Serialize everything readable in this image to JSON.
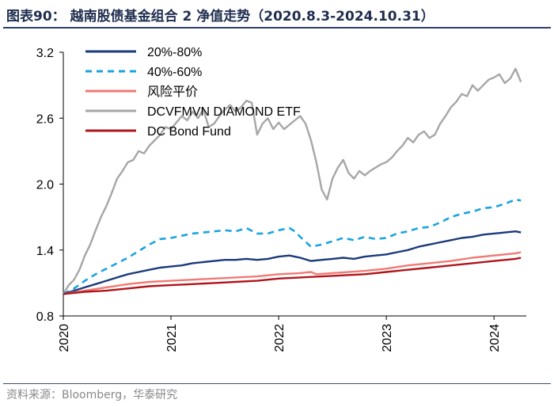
{
  "header": {
    "title": "图表90： 越南股债基金组合 2 净值走势（2020.8.3-2024.10.31）"
  },
  "footer": {
    "source": "资料来源：Bloomberg，华泰研究"
  },
  "chart_data": {
    "type": "line",
    "title": "越南股债基金组合 2 净值走势（2020.8.3-2024.10.31）",
    "xlabel": "",
    "ylabel": "",
    "x_ticks": [
      "2020",
      "2021",
      "2022",
      "2023",
      "2024"
    ],
    "x_range": [
      2020.0,
      2024.3
    ],
    "ylim": [
      0.8,
      3.2
    ],
    "y_ticks": [
      "0.8",
      "1.4",
      "2.0",
      "2.6",
      "3.2"
    ],
    "y_tick_values": [
      0.8,
      1.4,
      2.0,
      2.6,
      3.2
    ],
    "grid": false,
    "legend_position": "top-left",
    "series": [
      {
        "name": "20%-80%",
        "color": "#1b3a7a",
        "style": "solid",
        "x": [
          2020.0,
          2020.1,
          2020.2,
          2020.3,
          2020.4,
          2020.5,
          2020.6,
          2020.7,
          2020.8,
          2020.9,
          2021.0,
          2021.1,
          2021.2,
          2021.3,
          2021.4,
          2021.5,
          2021.6,
          2021.7,
          2021.8,
          2021.9,
          2022.0,
          2022.1,
          2022.15,
          2022.2,
          2022.3,
          2022.4,
          2022.5,
          2022.6,
          2022.7,
          2022.8,
          2022.9,
          2023.0,
          2023.1,
          2023.2,
          2023.3,
          2023.4,
          2023.5,
          2023.6,
          2023.7,
          2023.8,
          2023.9,
          2024.0,
          2024.1,
          2024.2,
          2024.25
        ],
        "values": [
          1.0,
          1.03,
          1.06,
          1.09,
          1.12,
          1.15,
          1.18,
          1.2,
          1.22,
          1.24,
          1.25,
          1.26,
          1.28,
          1.29,
          1.3,
          1.31,
          1.31,
          1.32,
          1.31,
          1.32,
          1.34,
          1.35,
          1.34,
          1.33,
          1.3,
          1.31,
          1.32,
          1.33,
          1.32,
          1.34,
          1.35,
          1.36,
          1.38,
          1.4,
          1.43,
          1.45,
          1.47,
          1.49,
          1.51,
          1.52,
          1.54,
          1.55,
          1.56,
          1.57,
          1.56
        ]
      },
      {
        "name": "40%-60%",
        "color": "#1aa3e0",
        "style": "dashed",
        "x": [
          2020.0,
          2020.1,
          2020.2,
          2020.3,
          2020.4,
          2020.5,
          2020.6,
          2020.7,
          2020.8,
          2020.9,
          2021.0,
          2021.1,
          2021.2,
          2021.3,
          2021.4,
          2021.5,
          2021.6,
          2021.7,
          2021.8,
          2021.9,
          2022.0,
          2022.1,
          2022.15,
          2022.2,
          2022.3,
          2022.4,
          2022.5,
          2022.6,
          2022.7,
          2022.8,
          2022.9,
          2023.0,
          2023.1,
          2023.2,
          2023.3,
          2023.4,
          2023.5,
          2023.6,
          2023.7,
          2023.8,
          2023.9,
          2024.0,
          2024.1,
          2024.2,
          2024.25
        ],
        "values": [
          1.0,
          1.05,
          1.12,
          1.18,
          1.23,
          1.28,
          1.33,
          1.39,
          1.45,
          1.5,
          1.51,
          1.53,
          1.55,
          1.56,
          1.57,
          1.58,
          1.57,
          1.6,
          1.55,
          1.55,
          1.58,
          1.6,
          1.57,
          1.52,
          1.43,
          1.45,
          1.48,
          1.51,
          1.49,
          1.52,
          1.5,
          1.51,
          1.55,
          1.57,
          1.6,
          1.61,
          1.65,
          1.7,
          1.73,
          1.75,
          1.78,
          1.79,
          1.82,
          1.86,
          1.85
        ]
      },
      {
        "name": "风险平价",
        "color": "#f07a74",
        "style": "solid",
        "x": [
          2020.0,
          2020.2,
          2020.4,
          2020.6,
          2020.8,
          2021.0,
          2021.2,
          2021.4,
          2021.6,
          2021.8,
          2022.0,
          2022.2,
          2022.3,
          2022.35,
          2022.5,
          2022.8,
          2023.0,
          2023.2,
          2023.4,
          2023.6,
          2023.8,
          2024.0,
          2024.2,
          2024.25
        ],
        "values": [
          1.0,
          1.03,
          1.06,
          1.09,
          1.11,
          1.12,
          1.13,
          1.14,
          1.15,
          1.16,
          1.18,
          1.19,
          1.2,
          1.18,
          1.19,
          1.21,
          1.23,
          1.26,
          1.28,
          1.3,
          1.33,
          1.35,
          1.37,
          1.38
        ]
      },
      {
        "name": "DCVFMVN DIAMOND ETF",
        "color": "#a6a6a6",
        "style": "solid",
        "x": [
          2020.0,
          2020.05,
          2020.1,
          2020.15,
          2020.2,
          2020.25,
          2020.3,
          2020.35,
          2020.4,
          2020.45,
          2020.5,
          2020.55,
          2020.6,
          2020.65,
          2020.7,
          2020.75,
          2020.8,
          2020.85,
          2020.9,
          2020.95,
          2021.0,
          2021.05,
          2021.1,
          2021.15,
          2021.2,
          2021.25,
          2021.3,
          2021.35,
          2021.4,
          2021.45,
          2021.5,
          2021.55,
          2021.6,
          2021.65,
          2021.7,
          2021.75,
          2021.8,
          2021.85,
          2021.9,
          2021.95,
          2022.0,
          2022.05,
          2022.1,
          2022.15,
          2022.2,
          2022.25,
          2022.3,
          2022.35,
          2022.4,
          2022.45,
          2022.5,
          2022.55,
          2022.6,
          2022.65,
          2022.7,
          2022.75,
          2022.8,
          2022.85,
          2022.9,
          2022.95,
          2023.0,
          2023.05,
          2023.1,
          2023.15,
          2023.2,
          2023.25,
          2023.3,
          2023.35,
          2023.4,
          2023.45,
          2023.5,
          2023.55,
          2023.6,
          2023.65,
          2023.7,
          2023.75,
          2023.8,
          2023.85,
          2023.9,
          2023.95,
          2024.0,
          2024.05,
          2024.1,
          2024.15,
          2024.2,
          2024.25
        ],
        "values": [
          1.0,
          1.08,
          1.13,
          1.22,
          1.35,
          1.45,
          1.58,
          1.7,
          1.8,
          1.92,
          2.05,
          2.12,
          2.2,
          2.22,
          2.3,
          2.28,
          2.35,
          2.4,
          2.45,
          2.52,
          2.5,
          2.56,
          2.62,
          2.58,
          2.66,
          2.6,
          2.68,
          2.52,
          2.55,
          2.62,
          2.68,
          2.72,
          2.66,
          2.7,
          2.76,
          2.74,
          2.45,
          2.55,
          2.6,
          2.5,
          2.56,
          2.5,
          2.54,
          2.58,
          2.62,
          2.55,
          2.4,
          2.2,
          1.95,
          1.86,
          2.05,
          2.15,
          2.22,
          2.1,
          2.05,
          2.12,
          2.08,
          2.12,
          2.15,
          2.18,
          2.2,
          2.24,
          2.3,
          2.35,
          2.42,
          2.38,
          2.45,
          2.48,
          2.42,
          2.45,
          2.55,
          2.62,
          2.7,
          2.75,
          2.82,
          2.8,
          2.9,
          2.85,
          2.9,
          2.95,
          2.97,
          3.0,
          2.92,
          2.96,
          3.05,
          2.93
        ]
      },
      {
        "name": "DC Bond Fund",
        "color": "#b0151c",
        "style": "solid",
        "x": [
          2020.0,
          2020.2,
          2020.4,
          2020.6,
          2020.8,
          2021.0,
          2021.2,
          2021.4,
          2021.6,
          2021.8,
          2022.0,
          2022.2,
          2022.4,
          2022.6,
          2022.8,
          2023.0,
          2023.2,
          2023.4,
          2023.6,
          2023.8,
          2024.0,
          2024.2,
          2024.25
        ],
        "values": [
          1.0,
          1.02,
          1.03,
          1.05,
          1.07,
          1.08,
          1.09,
          1.1,
          1.11,
          1.12,
          1.14,
          1.15,
          1.16,
          1.17,
          1.18,
          1.2,
          1.22,
          1.24,
          1.26,
          1.28,
          1.3,
          1.32,
          1.33
        ]
      }
    ]
  }
}
